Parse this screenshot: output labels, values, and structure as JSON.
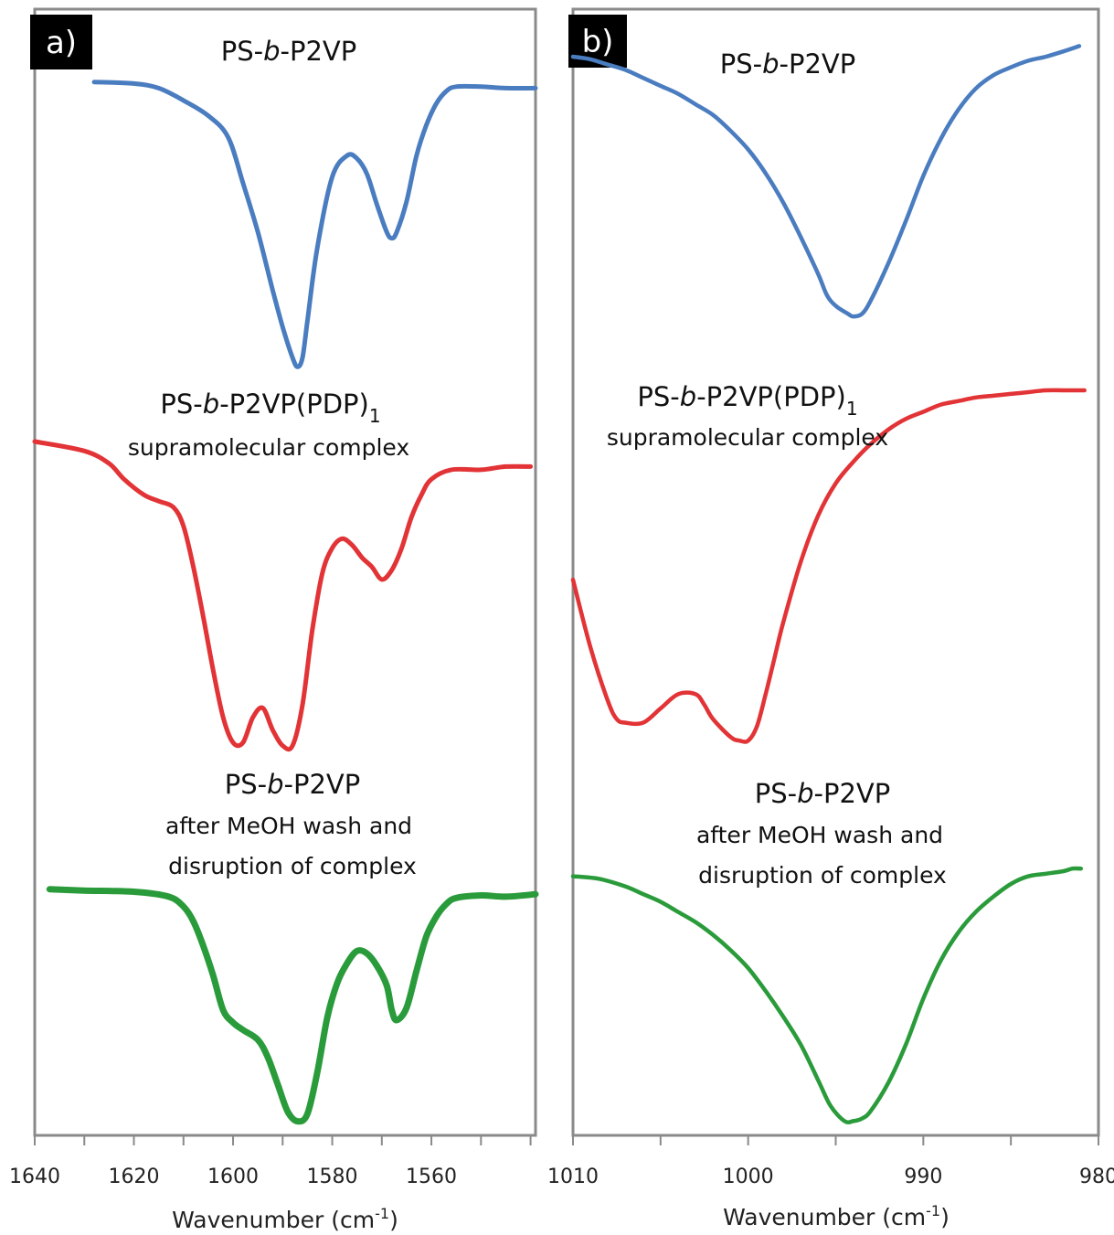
{
  "chart_data": [
    {
      "type": "line",
      "panel_label": "a)",
      "xlabel": "Wavenumber (cm",
      "xlabel_sup": "-1",
      "xlabel_close": ")",
      "xlim": [
        1640,
        1539
      ],
      "x_ticks": [
        "1640",
        "1620",
        "1600",
        "1580",
        "1560"
      ],
      "grid": false,
      "annotations": {
        "blue_title": "PS-b-P2VP",
        "red_title": "PS-b-P2VP(PDP)1",
        "red_sub": "supramolecular complex",
        "green_title": "PS-b-P2VP",
        "green_sub1": "after MeOH wash and",
        "green_sub2": "disruption of complex"
      },
      "series": [
        {
          "color": "#4a7cc0",
          "x": [
            1628,
            1620,
            1615,
            1610,
            1605,
            1601,
            1598,
            1595,
            1592,
            1590,
            1588,
            1587,
            1586,
            1585,
            1583,
            1580,
            1577,
            1575,
            1573,
            1571,
            1569,
            1568,
            1567,
            1565,
            1563,
            1561,
            1559,
            1557,
            1555,
            1550,
            1545,
            1539
          ],
          "y": [
            0.95,
            0.945,
            0.93,
            0.89,
            0.84,
            0.77,
            0.62,
            0.46,
            0.27,
            0.15,
            0.05,
            0.02,
            0.05,
            0.17,
            0.41,
            0.64,
            0.71,
            0.7,
            0.65,
            0.55,
            0.46,
            0.44,
            0.46,
            0.56,
            0.71,
            0.81,
            0.88,
            0.92,
            0.935,
            0.935,
            0.93,
            0.93
          ]
        },
        {
          "color": "#e23336",
          "x": [
            1640,
            1630,
            1625,
            1622,
            1618,
            1615,
            1612,
            1610,
            1608,
            1606,
            1604,
            1602,
            1600,
            1598,
            1596,
            1594,
            1592,
            1590,
            1588,
            1586,
            1584,
            1582,
            1580,
            1578,
            1576,
            1574,
            1572,
            1570,
            1568,
            1566,
            1564,
            1562,
            1560,
            1556,
            1550,
            1545,
            1540
          ],
          "y": [
            1.0,
            0.97,
            0.93,
            0.88,
            0.83,
            0.81,
            0.79,
            0.73,
            0.6,
            0.44,
            0.27,
            0.12,
            0.04,
            0.04,
            0.12,
            0.15,
            0.08,
            0.03,
            0.03,
            0.16,
            0.4,
            0.58,
            0.66,
            0.69,
            0.67,
            0.63,
            0.6,
            0.56,
            0.59,
            0.66,
            0.76,
            0.83,
            0.88,
            0.91,
            0.91,
            0.92,
            0.92
          ]
        },
        {
          "color": "#2a9b3a",
          "x": [
            1637,
            1630,
            1620,
            1613,
            1610,
            1608,
            1606,
            1604,
            1602,
            1600,
            1598,
            1595,
            1593,
            1591,
            1589,
            1587,
            1585,
            1583,
            1581,
            1579,
            1577,
            1575,
            1573,
            1571,
            1569,
            1568,
            1567,
            1565,
            1563,
            1561,
            1559,
            1557,
            1555,
            1550,
            1545,
            1539
          ],
          "y": [
            0.96,
            0.955,
            0.95,
            0.93,
            0.89,
            0.83,
            0.73,
            0.61,
            0.47,
            0.42,
            0.39,
            0.35,
            0.28,
            0.17,
            0.06,
            0.02,
            0.05,
            0.22,
            0.44,
            0.58,
            0.66,
            0.71,
            0.7,
            0.65,
            0.57,
            0.47,
            0.43,
            0.48,
            0.63,
            0.77,
            0.85,
            0.9,
            0.925,
            0.935,
            0.93,
            0.94
          ]
        }
      ]
    },
    {
      "type": "line",
      "panel_label": "b)",
      "xlabel": "Wavenumber (cm",
      "xlabel_sup": "-1",
      "xlabel_close": ")",
      "xlim": [
        1010,
        980
      ],
      "x_ticks": [
        "1010",
        "1000",
        "990",
        "980"
      ],
      "grid": false,
      "annotations": {
        "blue_title": "PS-b-P2VP",
        "red_title": "PS-b-P2VP(PDP)1",
        "red_sub": "supramolecular complex",
        "green_title": "PS-b-P2VP",
        "green_sub1": "after MeOH wash and",
        "green_sub2": "disruption of complex"
      },
      "series": [
        {
          "color": "#4a7cc0",
          "x": [
            1010,
            1009,
            1008,
            1007,
            1006,
            1005,
            1004,
            1003,
            1002,
            1001,
            1000,
            999,
            998,
            997,
            996,
            995.5,
            995,
            994.3,
            994,
            993.5,
            993,
            992,
            991,
            990,
            989,
            988,
            987,
            986,
            985,
            984,
            983,
            982,
            981.1
          ],
          "y": [
            1.0,
            0.99,
            0.97,
            0.95,
            0.92,
            0.89,
            0.86,
            0.82,
            0.78,
            0.72,
            0.65,
            0.56,
            0.45,
            0.32,
            0.18,
            0.1,
            0.06,
            0.03,
            0.02,
            0.03,
            0.08,
            0.22,
            0.38,
            0.55,
            0.69,
            0.8,
            0.88,
            0.93,
            0.96,
            0.985,
            1.0,
            1.02,
            1.04
          ]
        },
        {
          "color": "#e23336",
          "x": [
            1010,
            1009,
            1008,
            1007.5,
            1007,
            1006,
            1005,
            1004,
            1003,
            1002.5,
            1002,
            1001,
            1000.5,
            1000,
            999.5,
            999,
            998.5,
            998,
            997,
            996,
            995,
            994,
            993,
            992,
            991,
            990,
            989,
            988,
            987,
            986,
            985,
            984,
            983,
            982,
            981,
            980.8
          ],
          "y": [
            0.47,
            0.28,
            0.13,
            0.08,
            0.07,
            0.07,
            0.11,
            0.15,
            0.15,
            0.12,
            0.08,
            0.03,
            0.02,
            0.02,
            0.06,
            0.15,
            0.25,
            0.35,
            0.52,
            0.65,
            0.74,
            0.8,
            0.85,
            0.89,
            0.92,
            0.94,
            0.96,
            0.97,
            0.98,
            0.985,
            0.99,
            0.995,
            1.0,
            1.0,
            1.0,
            1.0
          ]
        },
        {
          "color": "#2a9b3a",
          "x": [
            1010,
            1008.5,
            1007,
            1006,
            1005,
            1004,
            1003,
            1002,
            1001,
            1000,
            999,
            998,
            997,
            996,
            995.3,
            994.5,
            994,
            993.5,
            993,
            992,
            991,
            990,
            989,
            988,
            987,
            986,
            985,
            984,
            983,
            982,
            981.5,
            981
          ],
          "y": [
            0.98,
            0.97,
            0.94,
            0.91,
            0.88,
            0.84,
            0.8,
            0.75,
            0.69,
            0.62,
            0.53,
            0.43,
            0.32,
            0.18,
            0.08,
            0.02,
            0.02,
            0.03,
            0.06,
            0.17,
            0.32,
            0.5,
            0.65,
            0.76,
            0.84,
            0.9,
            0.95,
            0.98,
            0.99,
            1.0,
            1.01,
            1.01
          ]
        }
      ]
    }
  ]
}
